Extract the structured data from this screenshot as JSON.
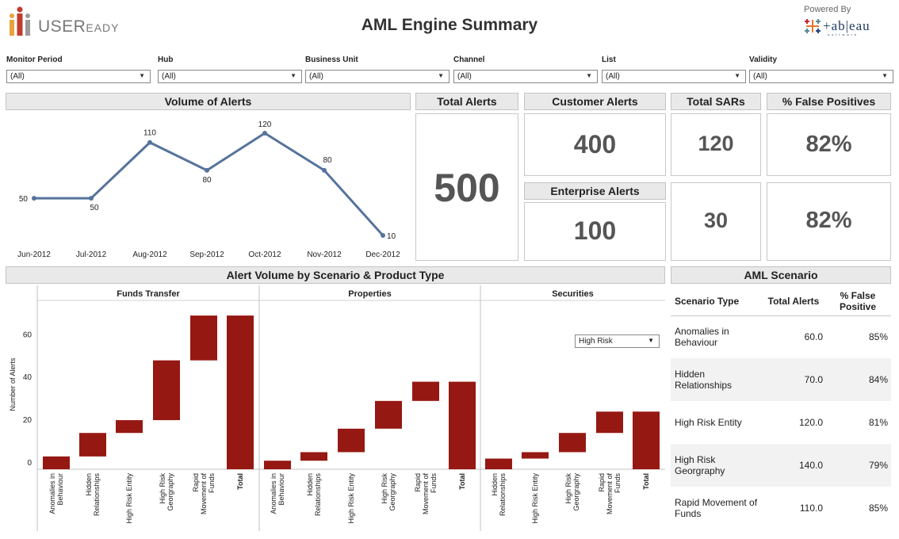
{
  "header": {
    "logo_text": "USER",
    "logo_text_small": "EADY",
    "title": "AML Engine Summary",
    "powered_by": "Powered By",
    "tableau_word": "+ab|eau",
    "tableau_sub": "software"
  },
  "filters": [
    {
      "label": "Monitor Period",
      "value": "(All)"
    },
    {
      "label": "Hub",
      "value": "(All)"
    },
    {
      "label": "Business Unit",
      "value": "(All)"
    },
    {
      "label": "Channel",
      "value": "(All)"
    },
    {
      "label": "List",
      "value": "(All)"
    },
    {
      "label": "Validity",
      "value": "(All)"
    }
  ],
  "volume_of_alerts": {
    "title": "Volume of Alerts",
    "line_color": "#56739c"
  },
  "kpis": {
    "total_alerts": {
      "label": "Total Alerts",
      "value": "500"
    },
    "customer_alerts": {
      "label": "Customer Alerts",
      "value": "400"
    },
    "enterprise_alerts": {
      "label": "Enterprise Alerts",
      "value": "100"
    },
    "total_sars": {
      "label": "Total SARs",
      "value_top": "120",
      "value_bottom": "30"
    },
    "false_positives": {
      "label": "% False Positives",
      "value_top": "82%",
      "value_bottom": "82%"
    }
  },
  "scenario_chart": {
    "title": "Alert Volume by Scenario & Product Type",
    "risk_filter": "High Risk"
  },
  "aml_scenario": {
    "title": "AML Scenario",
    "columns": [
      "Scenario Type",
      "Total Alerts",
      "% False Positive"
    ],
    "rows": [
      {
        "type": "Anomalies in Behaviour",
        "total": "60.0",
        "fp": "85%"
      },
      {
        "type": "Hidden Relationships",
        "total": "70.0",
        "fp": "84%"
      },
      {
        "type": "High Risk Entity",
        "total": "120.0",
        "fp": "81%"
      },
      {
        "type": "High Risk Georgraphy",
        "total": "140.0",
        "fp": "79%"
      },
      {
        "type": "Rapid Movement of Funds",
        "total": "110.0",
        "fp": "85%"
      }
    ]
  },
  "colors": {
    "bar": "#961812",
    "line": "#56739c",
    "header_bg": "#e9e9e9"
  },
  "chart_data": [
    {
      "type": "line",
      "title": "Volume of Alerts",
      "x": [
        "Jun-2012",
        "Jul-2012",
        "Aug-2012",
        "Sep-2012",
        "Oct-2012",
        "Nov-2012",
        "Dec-2012"
      ],
      "series": [
        {
          "values": [
            50,
            50,
            110,
            80,
            120,
            80,
            10
          ]
        }
      ],
      "data_labels": [
        "50",
        "50",
        "110",
        "80",
        "120",
        "80",
        "10"
      ],
      "ylim": [
        10,
        120
      ],
      "grid": false
    },
    {
      "type": "bar",
      "subtype": "waterfall",
      "title": "Alert Volume by Scenario & Product Type",
      "ylabel": "Number of Alerts",
      "ylim": [
        -3,
        72
      ],
      "yticks": [
        0,
        20,
        40,
        60
      ],
      "panels": [
        {
          "name": "Funds Transfer",
          "categories": [
            "Anomalies in Behaviour",
            "Hidden Relationships",
            "High Risk Entity",
            "High Risk Georgraphy",
            "Rapid Movement of Funds",
            "Total"
          ],
          "ranges": [
            [
              -3,
              3
            ],
            [
              3,
              14
            ],
            [
              14,
              20
            ],
            [
              20,
              48
            ],
            [
              48,
              69
            ],
            [
              -3,
              69
            ]
          ]
        },
        {
          "name": "Properties",
          "categories": [
            "Anomalies in Behaviour",
            "Hidden Relationships",
            "High Risk Entity",
            "High Risk Georgraphy",
            "Rapid Movement of Funds",
            "Total"
          ],
          "ranges": [
            [
              -3,
              1
            ],
            [
              1,
              5
            ],
            [
              5,
              16
            ],
            [
              16,
              29
            ],
            [
              29,
              38
            ],
            [
              -3,
              38
            ]
          ]
        },
        {
          "name": "Securities",
          "categories": [
            "Hidden Relationships",
            "High Risk Entity",
            "High Risk Georgraphy",
            "Rapid Movement of Funds",
            "Total"
          ],
          "ranges": [
            [
              -3,
              2
            ],
            [
              2,
              5
            ],
            [
              5,
              14
            ],
            [
              14,
              24
            ],
            [
              -3,
              24
            ]
          ]
        }
      ]
    }
  ]
}
